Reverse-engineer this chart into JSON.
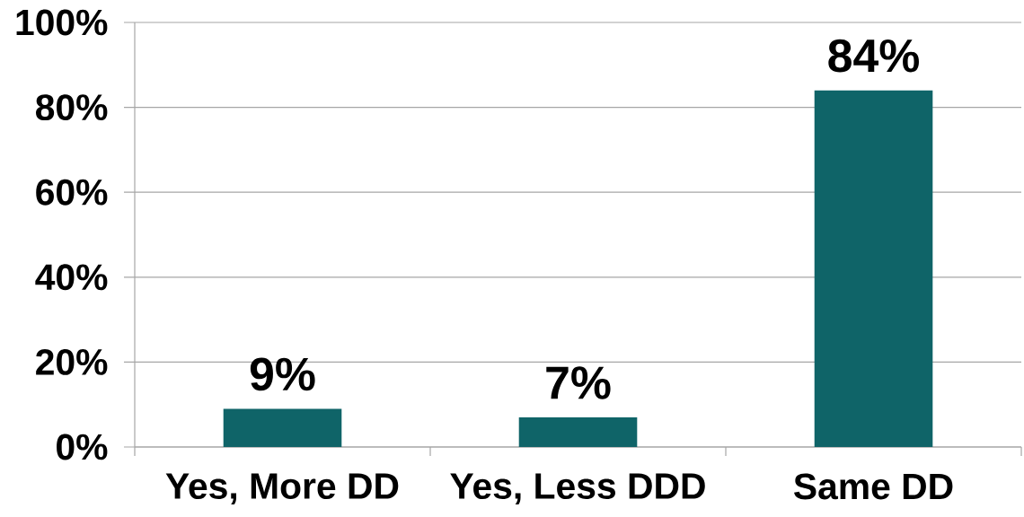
{
  "chart_data": {
    "type": "bar",
    "categories": [
      "Yes, More DD",
      "Yes, Less DDD",
      "Same DD"
    ],
    "values": [
      9,
      7,
      84
    ],
    "color": "#0f6468",
    "value_labels": [
      "9%",
      "7%",
      "84%"
    ],
    "ylim": [
      0,
      100
    ],
    "yticks": [
      {
        "value": 0,
        "label": "0%"
      },
      {
        "value": 20,
        "label": "20%"
      },
      {
        "value": 40,
        "label": "40%"
      },
      {
        "value": 60,
        "label": "60%"
      },
      {
        "value": 80,
        "label": "80%"
      },
      {
        "value": 100,
        "label": "100%"
      }
    ],
    "grid": "y"
  }
}
